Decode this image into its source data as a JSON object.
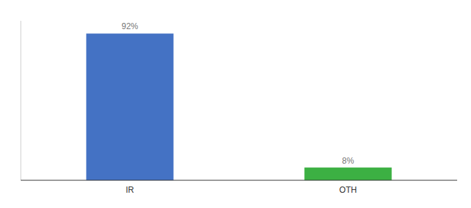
{
  "chart_data": {
    "type": "bar",
    "categories": [
      "IR",
      "OTH"
    ],
    "values": [
      92,
      8
    ],
    "value_labels": [
      "92%",
      "8%"
    ],
    "colors": [
      "#4472c4",
      "#3cb043"
    ],
    "ylim": [
      0,
      100
    ],
    "data_labels": true,
    "tick_labels": "x"
  }
}
